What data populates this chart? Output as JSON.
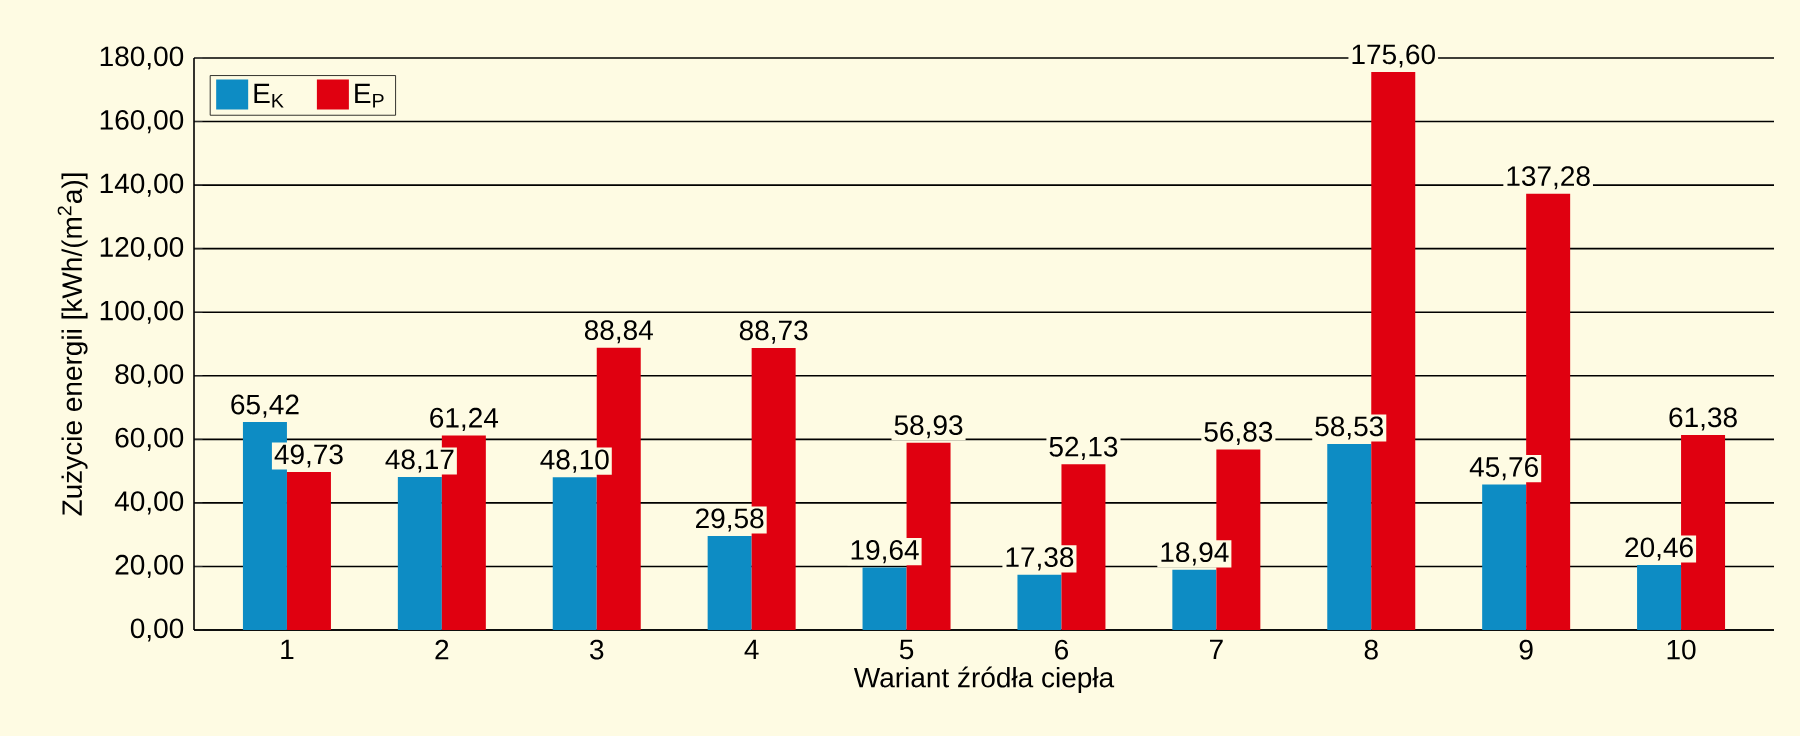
{
  "chart_data": {
    "type": "bar",
    "xlabel": "Wariant źródła ciepła",
    "ylabel": "Zużycie energii [kWh/(m$^{2}$a)]",
    "categories": [
      "1",
      "2",
      "3",
      "4",
      "5",
      "6",
      "7",
      "8",
      "9",
      "10"
    ],
    "series": [
      {
        "name": "E$_{K}$",
        "color": "#0d8cc4",
        "values": [
          65.42,
          48.17,
          48.1,
          29.58,
          19.64,
          17.38,
          18.94,
          58.53,
          45.76,
          20.46
        ],
        "value_labels": [
          "65,42",
          "48,17",
          "48,10",
          "29,58",
          "19,64",
          "17,38",
          "18,94",
          "58,53",
          "45,76",
          "20,46"
        ]
      },
      {
        "name": "E$_{P}$",
        "color": "#e00010",
        "values": [
          49.73,
          61.24,
          88.84,
          88.73,
          58.93,
          52.13,
          56.83,
          175.6,
          137.28,
          61.38
        ],
        "value_labels": [
          "49,73",
          "61,24",
          "88,84",
          "88,73",
          "58,93",
          "52,13",
          "56,83",
          "175,60",
          "137,28",
          "61,38"
        ]
      }
    ],
    "ylim": [
      0,
      180
    ],
    "yticks": [
      {
        "value": 0,
        "label": "0,00"
      },
      {
        "value": 20,
        "label": "20,00"
      },
      {
        "value": 40,
        "label": "40,00"
      },
      {
        "value": 60,
        "label": "60,00"
      },
      {
        "value": 80,
        "label": "80,00"
      },
      {
        "value": 100,
        "label": "100,00"
      },
      {
        "value": 120,
        "label": "120,00"
      },
      {
        "value": 140,
        "label": "140,00"
      },
      {
        "value": 160,
        "label": "160,00"
      },
      {
        "value": 180,
        "label": "180,00"
      }
    ],
    "grid": "y",
    "legend": "top left"
  }
}
